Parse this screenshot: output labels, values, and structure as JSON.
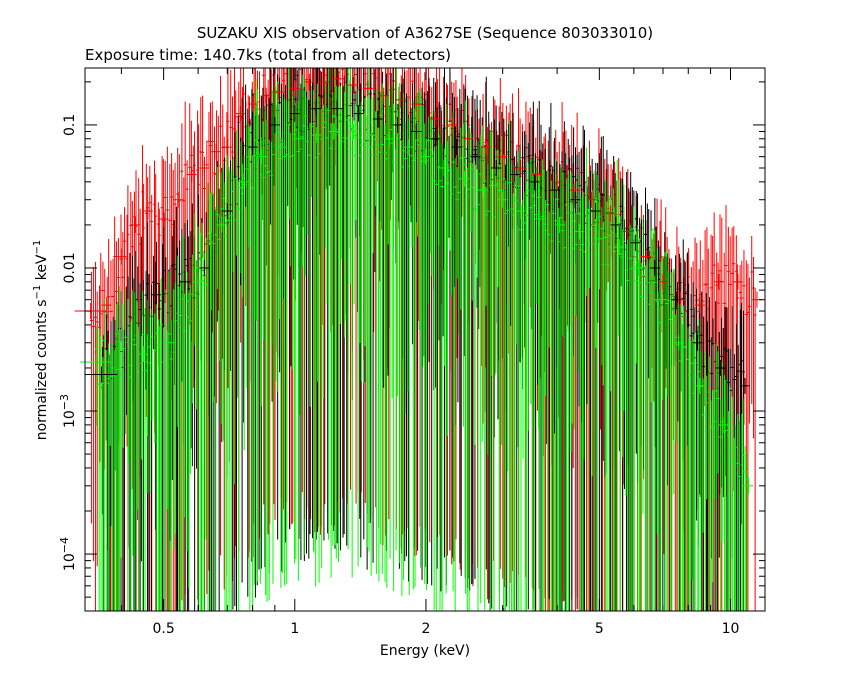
{
  "chart_data": {
    "type": "scatter",
    "title": "SUZAKU XIS observation of A3627SE (Sequence 803033010)",
    "subtitle": "Exposure time: 140.7ks (total from all detectors)",
    "xlabel": "Energy (keV)",
    "ylabel": {
      "prefix": "normalized counts s",
      "sup1": "−1",
      "mid": " keV",
      "sup2": "−1"
    },
    "xscale": "log",
    "yscale": "log",
    "xlim": [
      0.33,
      12.0
    ],
    "ylim": [
      4e-05,
      0.25
    ],
    "grid": false,
    "x_ticks": [
      {
        "value": 0.5,
        "label": "0.5"
      },
      {
        "value": 1,
        "label": "1"
      },
      {
        "value": 2,
        "label": "2"
      },
      {
        "value": 5,
        "label": "5"
      },
      {
        "value": 10,
        "label": "10"
      }
    ],
    "y_ticks": [
      {
        "value": 0.1,
        "label": "0.1"
      },
      {
        "value": 0.01,
        "label": "0.01"
      },
      {
        "value": 0.001,
        "label_base": "10",
        "label_exp": "−3"
      },
      {
        "value": 0.0001,
        "label_base": "10",
        "label_exp": "−4"
      }
    ],
    "series": [
      {
        "color": "#ff0000",
        "points": [
          [
            0.34,
            0.005
          ],
          [
            0.37,
            0.0055
          ],
          [
            0.4,
            0.012
          ],
          [
            0.43,
            0.02
          ],
          [
            0.46,
            0.025
          ],
          [
            0.5,
            0.022
          ],
          [
            0.54,
            0.03
          ],
          [
            0.58,
            0.045
          ],
          [
            0.62,
            0.05
          ],
          [
            0.66,
            0.065
          ],
          [
            0.7,
            0.07
          ],
          [
            0.75,
            0.12
          ],
          [
            0.8,
            0.14
          ],
          [
            0.86,
            0.16
          ],
          [
            0.92,
            0.17
          ],
          [
            1.0,
            0.18
          ],
          [
            1.08,
            0.2
          ],
          [
            1.17,
            0.2
          ],
          [
            1.26,
            0.21
          ],
          [
            1.36,
            0.19
          ],
          [
            1.47,
            0.18
          ],
          [
            1.6,
            0.16
          ],
          [
            1.75,
            0.15
          ],
          [
            1.9,
            0.14
          ],
          [
            2.1,
            0.11
          ],
          [
            2.3,
            0.1
          ],
          [
            2.5,
            0.08
          ],
          [
            2.75,
            0.07
          ],
          [
            3.0,
            0.06
          ],
          [
            3.3,
            0.05
          ],
          [
            3.6,
            0.045
          ],
          [
            4.0,
            0.04
          ],
          [
            4.4,
            0.035
          ],
          [
            4.8,
            0.03
          ],
          [
            5.3,
            0.024
          ],
          [
            5.8,
            0.018
          ],
          [
            6.4,
            0.012
          ],
          [
            7.0,
            0.008
          ],
          [
            7.7,
            0.006
          ],
          [
            8.5,
            0.0055
          ],
          [
            9.4,
            0.008
          ],
          [
            10.4,
            0.008
          ],
          [
            11.5,
            0.006
          ]
        ]
      },
      {
        "color": "#000000",
        "points": [
          [
            0.36,
            0.0018
          ],
          [
            0.48,
            0.0065
          ],
          [
            0.56,
            0.008
          ],
          [
            0.62,
            0.01
          ],
          [
            0.7,
            0.025
          ],
          [
            0.8,
            0.07
          ],
          [
            0.9,
            0.1
          ],
          [
            1.0,
            0.12
          ],
          [
            1.12,
            0.13
          ],
          [
            1.25,
            0.13
          ],
          [
            1.4,
            0.12
          ],
          [
            1.55,
            0.11
          ],
          [
            1.72,
            0.1
          ],
          [
            1.9,
            0.09
          ],
          [
            2.1,
            0.08
          ],
          [
            2.35,
            0.07
          ],
          [
            2.6,
            0.06
          ],
          [
            2.9,
            0.05
          ],
          [
            3.2,
            0.045
          ],
          [
            3.55,
            0.04
          ],
          [
            3.95,
            0.035
          ],
          [
            4.4,
            0.03
          ],
          [
            4.9,
            0.025
          ],
          [
            5.45,
            0.02
          ],
          [
            6.05,
            0.015
          ],
          [
            6.7,
            0.01
          ],
          [
            7.5,
            0.006
          ],
          [
            8.4,
            0.003
          ],
          [
            9.5,
            0.002
          ],
          [
            10.8,
            0.0015
          ]
        ]
      },
      {
        "color": "#00ff00",
        "points": [
          [
            0.35,
            0.0022
          ],
          [
            0.45,
            0.0025
          ],
          [
            0.52,
            0.003
          ],
          [
            0.6,
            0.008
          ],
          [
            0.68,
            0.02
          ],
          [
            0.76,
            0.04
          ],
          [
            0.84,
            0.06
          ],
          [
            0.93,
            0.07
          ],
          [
            1.02,
            0.08
          ],
          [
            1.12,
            0.085
          ],
          [
            1.23,
            0.09
          ],
          [
            1.36,
            0.09
          ],
          [
            1.5,
            0.085
          ],
          [
            1.65,
            0.08
          ],
          [
            1.82,
            0.07
          ],
          [
            2.0,
            0.06
          ],
          [
            2.2,
            0.05
          ],
          [
            2.45,
            0.042
          ],
          [
            2.7,
            0.035
          ],
          [
            3.0,
            0.03
          ],
          [
            3.3,
            0.025
          ],
          [
            3.65,
            0.022
          ],
          [
            4.05,
            0.02
          ],
          [
            4.5,
            0.018
          ],
          [
            5.0,
            0.016
          ],
          [
            5.55,
            0.014
          ],
          [
            6.15,
            0.01
          ],
          [
            6.85,
            0.006
          ],
          [
            7.6,
            0.003
          ],
          [
            8.5,
            0.0015
          ],
          [
            9.6,
            0.0008
          ],
          [
            11.0,
            0.0003
          ]
        ]
      }
    ]
  }
}
